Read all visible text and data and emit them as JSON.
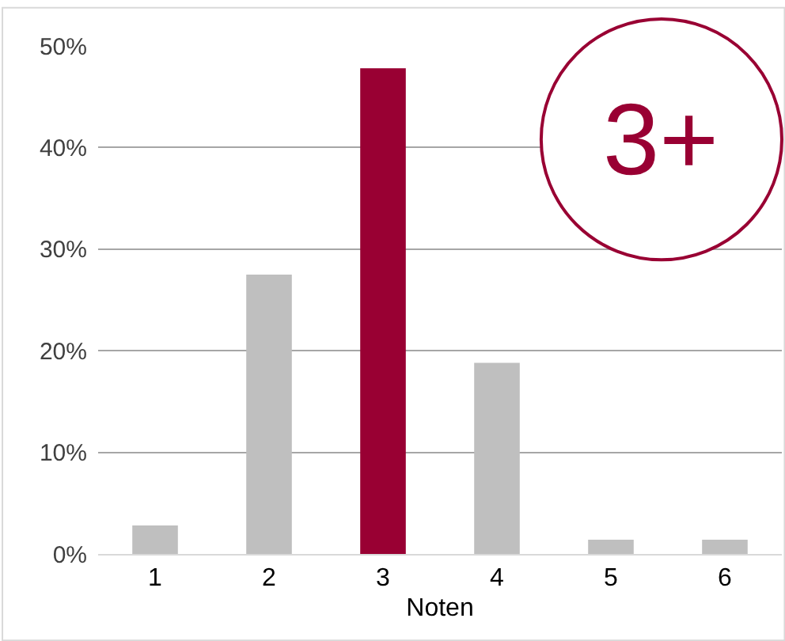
{
  "chart_data": {
    "type": "bar",
    "categories": [
      "1",
      "2",
      "3",
      "4",
      "5",
      "6"
    ],
    "values": [
      2.8,
      27.5,
      47.8,
      18.8,
      1.4,
      1.4
    ],
    "colors": [
      "#bfbfbf",
      "#bfbfbf",
      "#990033",
      "#bfbfbf",
      "#bfbfbf",
      "#bfbfbf"
    ],
    "xlabel": "Noten",
    "ylim": [
      0,
      50
    ],
    "yticks": [
      {
        "value": 0,
        "label": "0%"
      },
      {
        "value": 10,
        "label": "10%"
      },
      {
        "value": 20,
        "label": "20%"
      },
      {
        "value": 30,
        "label": "30%"
      },
      {
        "value": 40,
        "label": "40%"
      },
      {
        "value": 50,
        "label": "50%"
      }
    ],
    "grid": "y",
    "annotations": [
      "3+"
    ]
  }
}
